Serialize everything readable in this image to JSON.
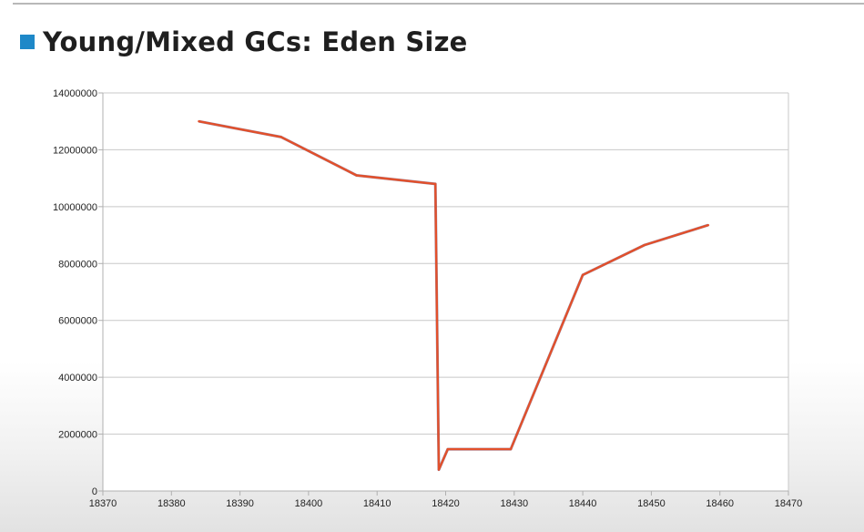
{
  "slide": {
    "title": "Young/Mixed GCs: Eden Size",
    "accent_color": "#1e88c8"
  },
  "chart_data": {
    "type": "line",
    "title": "",
    "xlabel": "",
    "ylabel": "",
    "xlim": [
      18370,
      18470
    ],
    "ylim": [
      0,
      14000000
    ],
    "x_ticks": [
      18370,
      18380,
      18390,
      18400,
      18410,
      18420,
      18430,
      18440,
      18450,
      18460,
      18470
    ],
    "y_ticks": [
      0,
      2000000,
      4000000,
      6000000,
      8000000,
      10000000,
      12000000,
      14000000
    ],
    "grid": true,
    "legend": "none",
    "series": [
      {
        "color": "#e2502b",
        "x": [
          18384,
          18396,
          18407,
          18418.5,
          18419,
          18420.3,
          18429.5,
          18440,
          18449,
          18458.3
        ],
        "y": [
          13000000,
          12450000,
          11100000,
          10800000,
          750000,
          1470000,
          1470000,
          7600000,
          8650000,
          9350000
        ]
      }
    ]
  }
}
